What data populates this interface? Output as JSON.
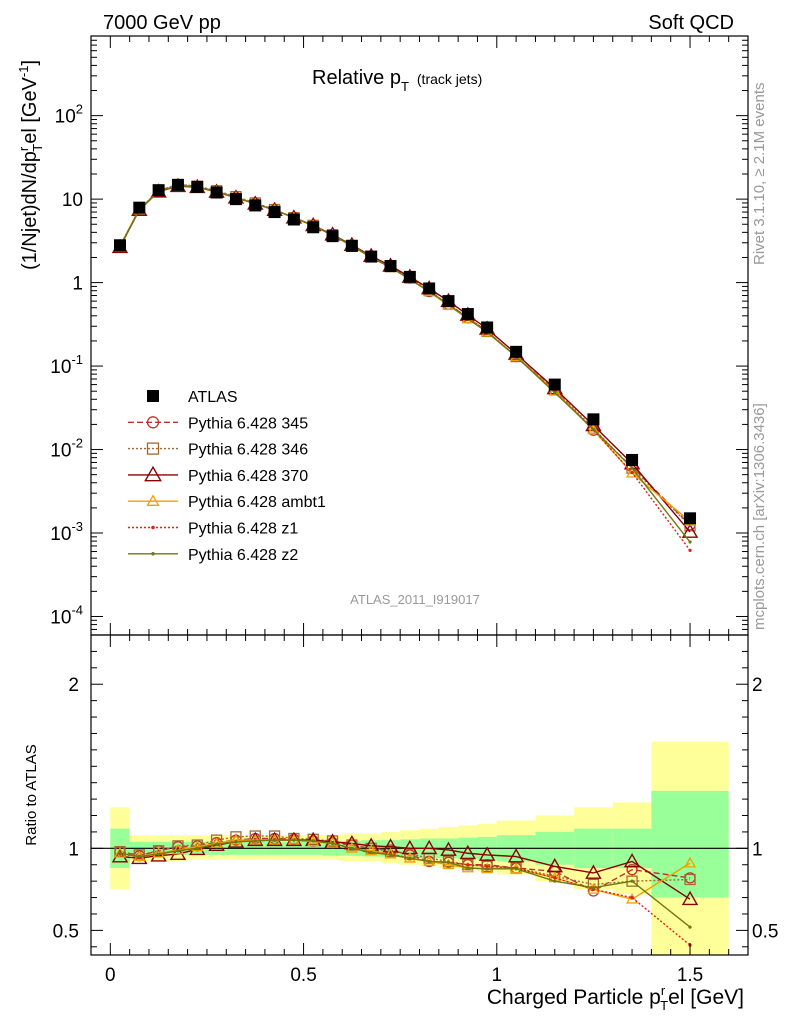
{
  "header": {
    "left": "7000 GeV pp",
    "right": "Soft QCD"
  },
  "side_text": {
    "rivet": "Rivet 3.1.10, ≥ 2.1M events",
    "mcplots": "mcplots.cern.ch [arXiv:1306.3436]"
  },
  "chart_data": [
    {
      "type": "line",
      "panel": "main",
      "title": {
        "main": "Relative p",
        "sub": "T",
        "suffix": "(track jets)"
      },
      "ylabel": "(1/Njet)dN/dp_T^rel [GeV^-1]",
      "yscale": "log",
      "ylim": [
        6e-05,
        900
      ],
      "xlim": [
        -0.05,
        1.65
      ],
      "y_tick_labels": [
        "10^2",
        "10",
        "1",
        "10^-1",
        "10^-2",
        "10^-3",
        "10^-4"
      ],
      "watermark": "ATLAS_2011_I919017",
      "x": [
        0.025,
        0.075,
        0.125,
        0.175,
        0.225,
        0.275,
        0.325,
        0.375,
        0.425,
        0.475,
        0.525,
        0.575,
        0.625,
        0.675,
        0.725,
        0.775,
        0.825,
        0.875,
        0.925,
        0.975,
        1.05,
        1.15,
        1.25,
        1.35,
        1.5
      ],
      "series": [
        {
          "name": "ATLAS",
          "color": "#000000",
          "style": "data",
          "values": [
            2.8,
            7.9,
            12.8,
            14.8,
            14.0,
            12.0,
            10.0,
            8.4,
            7.0,
            5.7,
            4.6,
            3.6,
            2.75,
            2.05,
            1.58,
            1.17,
            0.85,
            0.6,
            0.42,
            0.29,
            0.148,
            0.06,
            0.023,
            0.0075,
            0.0015
          ]
        },
        {
          "name": "Pythia 6.428 345",
          "color": "#c03030",
          "style": "dashed-circle",
          "values": [
            2.74,
            7.5,
            12.6,
            15.0,
            14.2,
            12.4,
            10.5,
            8.9,
            7.4,
            6.0,
            4.8,
            3.7,
            2.8,
            2.05,
            1.57,
            1.12,
            0.78,
            0.55,
            0.38,
            0.26,
            0.13,
            0.052,
            0.017,
            0.0062,
            0.00125
          ]
        },
        {
          "name": "Pythia 6.428 346",
          "color": "#a06a30",
          "style": "dotted-square",
          "values": [
            2.74,
            7.6,
            12.6,
            15.0,
            14.3,
            12.6,
            10.7,
            9.0,
            7.5,
            6.0,
            4.85,
            3.75,
            2.8,
            2.05,
            1.55,
            1.13,
            0.8,
            0.55,
            0.38,
            0.26,
            0.13,
            0.052,
            0.018,
            0.006,
            0.00122
          ]
        },
        {
          "name": "Pythia 6.428 370",
          "color": "#8b0000",
          "style": "solid-triangle",
          "values": [
            2.66,
            7.4,
            12.3,
            14.3,
            13.9,
            12.2,
            10.4,
            8.8,
            7.4,
            6.0,
            4.85,
            3.75,
            2.82,
            2.08,
            1.59,
            1.17,
            0.85,
            0.6,
            0.41,
            0.28,
            0.14,
            0.054,
            0.0195,
            0.0068,
            0.00103
          ]
        },
        {
          "name": "Pythia 6.428 ambt1",
          "color": "#f0a000",
          "style": "solid-triangle-small",
          "values": [
            2.72,
            7.5,
            12.4,
            14.7,
            14.1,
            12.4,
            10.5,
            8.8,
            7.4,
            6.0,
            4.8,
            3.7,
            2.75,
            2.02,
            1.52,
            1.1,
            0.78,
            0.53,
            0.37,
            0.255,
            0.13,
            0.05,
            0.0172,
            0.0052,
            0.00138
          ]
        },
        {
          "name": "Pythia 6.428 z1",
          "color": "#e02010",
          "style": "dotted-dot",
          "values": [
            2.7,
            7.5,
            12.4,
            14.6,
            14.0,
            12.3,
            10.4,
            8.8,
            7.4,
            6.0,
            4.8,
            3.7,
            2.75,
            2.0,
            1.52,
            1.1,
            0.78,
            0.55,
            0.38,
            0.26,
            0.13,
            0.049,
            0.0172,
            0.0053,
            0.00062
          ]
        },
        {
          "name": "Pythia 6.428 z2",
          "color": "#6e7a10",
          "style": "solid-dot",
          "values": [
            2.72,
            7.5,
            12.4,
            14.6,
            14.0,
            12.3,
            10.4,
            8.8,
            7.4,
            6.0,
            4.8,
            3.7,
            2.75,
            2.0,
            1.52,
            1.1,
            0.78,
            0.55,
            0.37,
            0.255,
            0.13,
            0.048,
            0.0175,
            0.006,
            0.00078
          ]
        }
      ],
      "legend_position": "lower-left"
    },
    {
      "type": "line",
      "panel": "ratio",
      "ylabel": "Ratio to ATLAS",
      "xlabel": "Charged Particle p_T^rel [GeV]",
      "xlim": [
        -0.05,
        1.65
      ],
      "ylim": [
        0.35,
        2.3
      ],
      "x_ticks": [
        0,
        0.5,
        1,
        1.5
      ],
      "x_tick_labels": [
        "0",
        "0.5",
        "1",
        "1.5"
      ],
      "y_ticks": [
        0.5,
        1,
        2
      ],
      "y_tick_labels": [
        "0.5",
        "1",
        "2"
      ],
      "bin_edges": [
        0.0,
        0.05,
        0.1,
        0.15,
        0.2,
        0.25,
        0.3,
        0.35,
        0.4,
        0.45,
        0.5,
        0.55,
        0.6,
        0.65,
        0.7,
        0.75,
        0.8,
        0.85,
        0.9,
        0.95,
        1.0,
        1.1,
        1.2,
        1.3,
        1.4,
        1.6
      ],
      "band_inner": [
        [
          0.88,
          1.12
        ],
        [
          0.96,
          1.04
        ],
        [
          0.96,
          1.04
        ],
        [
          0.96,
          1.04
        ],
        [
          0.96,
          1.04
        ],
        [
          0.96,
          1.04
        ],
        [
          0.96,
          1.04
        ],
        [
          0.96,
          1.04
        ],
        [
          0.96,
          1.04
        ],
        [
          0.96,
          1.04
        ],
        [
          0.96,
          1.04
        ],
        [
          0.955,
          1.045
        ],
        [
          0.955,
          1.045
        ],
        [
          0.95,
          1.05
        ],
        [
          0.95,
          1.05
        ],
        [
          0.945,
          1.055
        ],
        [
          0.94,
          1.06
        ],
        [
          0.94,
          1.06
        ],
        [
          0.935,
          1.065
        ],
        [
          0.93,
          1.07
        ],
        [
          0.92,
          1.08
        ],
        [
          0.9,
          1.1
        ],
        [
          0.88,
          1.12
        ],
        [
          0.88,
          1.12
        ],
        [
          0.7,
          1.35
        ]
      ],
      "band_outer": [
        [
          0.75,
          1.25
        ],
        [
          0.92,
          1.08
        ],
        [
          0.92,
          1.08
        ],
        [
          0.92,
          1.08
        ],
        [
          0.93,
          1.08
        ],
        [
          0.93,
          1.08
        ],
        [
          0.93,
          1.08
        ],
        [
          0.93,
          1.08
        ],
        [
          0.93,
          1.08
        ],
        [
          0.93,
          1.08
        ],
        [
          0.93,
          1.08
        ],
        [
          0.93,
          1.08
        ],
        [
          0.92,
          1.09
        ],
        [
          0.92,
          1.09
        ],
        [
          0.91,
          1.1
        ],
        [
          0.9,
          1.11
        ],
        [
          0.89,
          1.12
        ],
        [
          0.88,
          1.13
        ],
        [
          0.87,
          1.14
        ],
        [
          0.86,
          1.15
        ],
        [
          0.84,
          1.17
        ],
        [
          0.8,
          1.2
        ],
        [
          0.75,
          1.25
        ],
        [
          0.72,
          1.28
        ],
        [
          0.35,
          1.65
        ]
      ],
      "x": [
        0.025,
        0.075,
        0.125,
        0.175,
        0.225,
        0.275,
        0.325,
        0.375,
        0.425,
        0.475,
        0.525,
        0.575,
        0.625,
        0.675,
        0.725,
        0.775,
        0.825,
        0.875,
        0.925,
        0.975,
        1.05,
        1.15,
        1.25,
        1.35,
        1.5
      ],
      "series": [
        {
          "name": "Pythia 6.428 345",
          "color": "#c03030",
          "values": [
            0.98,
            0.955,
            0.985,
            1.01,
            1.015,
            1.035,
            1.05,
            1.06,
            1.06,
            1.055,
            1.045,
            1.035,
            1.02,
            1.0,
            0.99,
            0.96,
            0.92,
            0.915,
            0.9,
            0.9,
            0.88,
            0.86,
            0.74,
            0.87,
            0.82
          ]
        },
        {
          "name": "Pythia 6.428 346",
          "color": "#a06a30",
          "values": [
            0.98,
            0.96,
            0.985,
            1.015,
            1.02,
            1.05,
            1.07,
            1.075,
            1.075,
            1.06,
            1.055,
            1.045,
            1.02,
            1.0,
            0.98,
            0.965,
            0.94,
            0.92,
            0.9,
            0.89,
            0.88,
            0.83,
            0.78,
            0.8,
            0.81
          ]
        },
        {
          "name": "Pythia 6.428 370",
          "color": "#8b0000",
          "values": [
            0.95,
            0.94,
            0.955,
            0.965,
            0.995,
            1.02,
            1.04,
            1.05,
            1.05,
            1.05,
            1.05,
            1.04,
            1.03,
            1.015,
            1.01,
            1.0,
            1.0,
            0.99,
            0.97,
            0.96,
            0.95,
            0.89,
            0.85,
            0.92,
            0.69
          ]
        },
        {
          "name": "Pythia 6.428 ambt1",
          "color": "#f0a000",
          "values": [
            0.97,
            0.95,
            0.97,
            0.99,
            1.01,
            1.03,
            1.05,
            1.05,
            1.05,
            1.05,
            1.04,
            1.03,
            1.0,
            0.985,
            0.965,
            0.94,
            0.92,
            0.9,
            0.88,
            0.875,
            0.875,
            0.82,
            0.75,
            0.69,
            0.91
          ]
        },
        {
          "name": "Pythia 6.428 z1",
          "color": "#e02010",
          "values": [
            0.965,
            0.95,
            0.965,
            0.985,
            1.0,
            1.025,
            1.04,
            1.045,
            1.05,
            1.05,
            1.045,
            1.03,
            1.0,
            0.975,
            0.965,
            0.94,
            0.92,
            0.915,
            0.9,
            0.89,
            0.88,
            0.82,
            0.75,
            0.7,
            0.41
          ]
        },
        {
          "name": "Pythia 6.428 z2",
          "color": "#6e7a10",
          "values": [
            0.97,
            0.95,
            0.965,
            0.985,
            1.0,
            1.025,
            1.04,
            1.045,
            1.05,
            1.05,
            1.045,
            1.03,
            1.0,
            0.975,
            0.96,
            0.94,
            0.92,
            0.915,
            0.88,
            0.875,
            0.875,
            0.8,
            0.76,
            0.8,
            0.52
          ]
        }
      ]
    }
  ]
}
